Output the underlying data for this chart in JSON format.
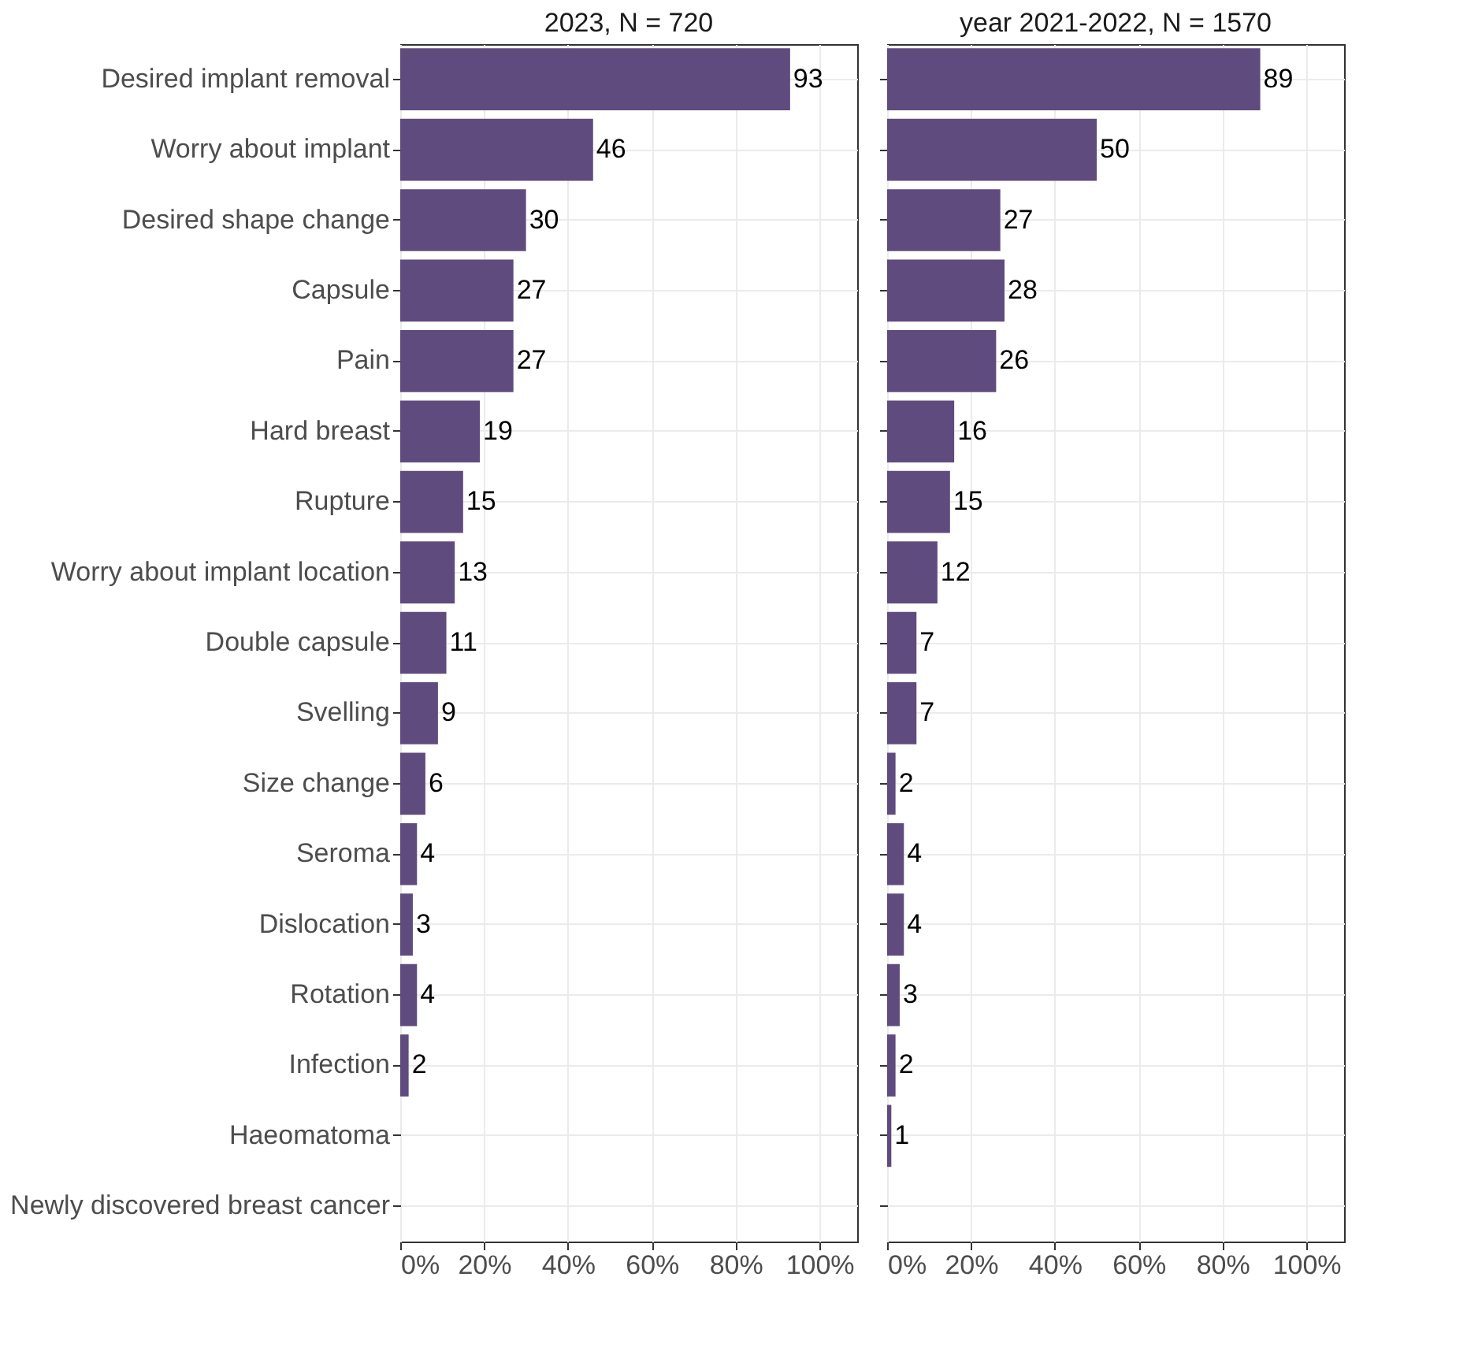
{
  "chart_data": [
    {
      "type": "bar",
      "orientation": "horizontal",
      "title": "2023, N = 720",
      "categories": [
        "Desired implant removal",
        "Worry about implant",
        "Desired shape change",
        "Capsule",
        "Pain",
        "Hard breast",
        "Rupture",
        "Worry about implant location",
        "Double capsule",
        "Svelling",
        "Size change",
        "Seroma",
        "Dislocation",
        "Rotation",
        "Infection",
        "Haeomatoma",
        "Newly discovered breast cancer"
      ],
      "series": [
        {
          "color": "#5f4b7d",
          "values": [
            93,
            46,
            30,
            27,
            27,
            19,
            15,
            13,
            11,
            9,
            6,
            4,
            3,
            4,
            2,
            null,
            null
          ]
        }
      ],
      "data_labels": true,
      "xlim": [
        0,
        109
      ],
      "xticks": [
        {
          "value": 0,
          "label": "0%"
        },
        {
          "value": 20,
          "label": "20%"
        },
        {
          "value": 40,
          "label": "40%"
        },
        {
          "value": 60,
          "label": "60%"
        },
        {
          "value": 80,
          "label": "80%"
        },
        {
          "value": 100,
          "label": "100%"
        }
      ],
      "grid": true
    },
    {
      "type": "bar",
      "orientation": "horizontal",
      "title": "year 2021-2022, N = 1570",
      "categories": [
        "Desired implant removal",
        "Worry about implant",
        "Desired shape change",
        "Capsule",
        "Pain",
        "Hard breast",
        "Rupture",
        "Worry about implant location",
        "Double capsule",
        "Svelling",
        "Size change",
        "Seroma",
        "Dislocation",
        "Rotation",
        "Infection",
        "Haeomatoma",
        "Newly discovered breast cancer"
      ],
      "series": [
        {
          "color": "#5f4b7d",
          "values": [
            89,
            50,
            27,
            28,
            26,
            16,
            15,
            12,
            7,
            7,
            2,
            4,
            4,
            3,
            2,
            1,
            null
          ]
        }
      ],
      "data_labels": true,
      "xlim": [
        0,
        109
      ],
      "xticks": [
        {
          "value": 0,
          "label": "0%"
        },
        {
          "value": 20,
          "label": "20%"
        },
        {
          "value": 40,
          "label": "40%"
        },
        {
          "value": 60,
          "label": "60%"
        },
        {
          "value": 80,
          "label": "80%"
        },
        {
          "value": 100,
          "label": "100%"
        }
      ],
      "grid": true,
      "tick_labels": "x"
    }
  ]
}
